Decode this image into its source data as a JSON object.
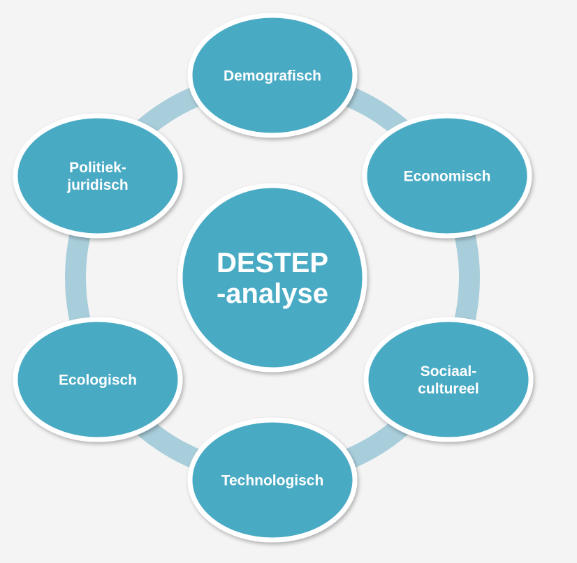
{
  "colors": {
    "background": "#f4f4f4",
    "ring": "#a9cedb",
    "node_fill": "#4aaac4",
    "node_stroke": "#ffffff"
  },
  "center": {
    "lines": [
      "DESTEP",
      "-analyse"
    ]
  },
  "nodes": [
    {
      "id": "demografisch",
      "lines": [
        "Demografisch"
      ]
    },
    {
      "id": "economisch",
      "lines": [
        "Economisch"
      ]
    },
    {
      "id": "sociaal-cultureel",
      "lines": [
        "Sociaal-",
        "cultureel"
      ]
    },
    {
      "id": "technologisch",
      "lines": [
        "Technologisch"
      ]
    },
    {
      "id": "ecologisch",
      "lines": [
        "Ecologisch"
      ]
    },
    {
      "id": "politiek-juridisch",
      "lines": [
        "Politiek-",
        "juridisch"
      ]
    }
  ]
}
